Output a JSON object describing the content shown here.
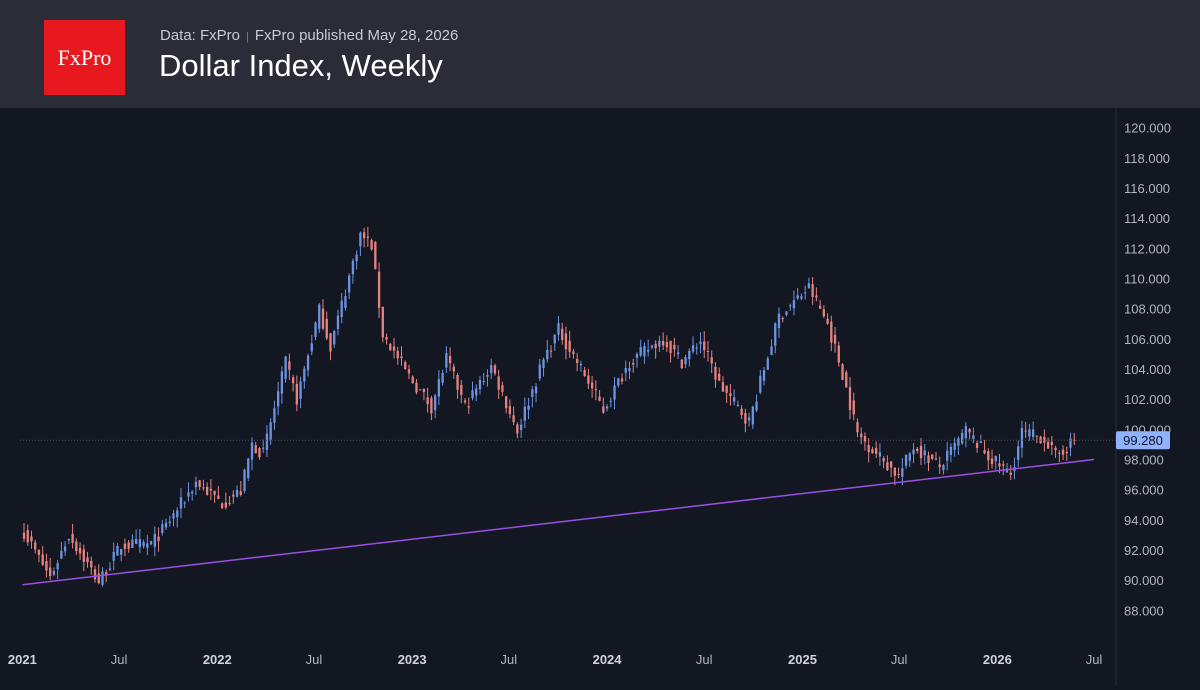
{
  "header": {
    "logo_text": "FxPro",
    "data_label": "Data: FxPro",
    "published_label": "FxPro published May 28, 2026",
    "title": "Dollar Index, Weekly"
  },
  "colors": {
    "up": "#6b93e0",
    "down": "#e8827e",
    "trendline": "#9c4fe3",
    "background": "#131722",
    "header": "#2a2d37",
    "price_badge": "#8fb3ff"
  },
  "chart_data": {
    "type": "candlestick",
    "title": "Dollar Index, Weekly",
    "frequency": "weekly",
    "x_range": [
      "2021-01-04",
      "2026-06-01"
    ],
    "ylim": [
      86.5,
      121.3
    ],
    "y_ticks": [
      88,
      90,
      92,
      94,
      96,
      98,
      100,
      102,
      104,
      106,
      108,
      110,
      112,
      114,
      116,
      118,
      120
    ],
    "y_tick_labels": [
      "88.000",
      "90.000",
      "92.000",
      "94.000",
      "96.000",
      "98.000",
      "100.000",
      "102.000",
      "104.000",
      "106.000",
      "108.000",
      "110.000",
      "112.000",
      "114.000",
      "116.000",
      "118.000",
      "120.000"
    ],
    "x_tick_labels": [
      {
        "date": "2021-01-01",
        "label": "2021",
        "bold": true
      },
      {
        "date": "2021-07-01",
        "label": "Jul",
        "bold": false
      },
      {
        "date": "2022-01-01",
        "label": "2022",
        "bold": true
      },
      {
        "date": "2022-07-01",
        "label": "Jul",
        "bold": false
      },
      {
        "date": "2023-01-01",
        "label": "2023",
        "bold": true
      },
      {
        "date": "2023-07-01",
        "label": "Jul",
        "bold": false
      },
      {
        "date": "2024-01-01",
        "label": "2024",
        "bold": true
      },
      {
        "date": "2024-07-01",
        "label": "Jul",
        "bold": false
      },
      {
        "date": "2025-01-01",
        "label": "2025",
        "bold": true
      },
      {
        "date": "2025-07-01",
        "label": "Jul",
        "bold": false
      },
      {
        "date": "2026-01-01",
        "label": "2026",
        "bold": true
      },
      {
        "date": "2026-07-01",
        "label": "Jul",
        "bold": false
      }
    ],
    "last_price": 99.28,
    "last_price_label": "99.280",
    "trendline": {
      "start": {
        "date": "2021-01-01",
        "value": 89.7
      },
      "end": {
        "date": "2026-07-01",
        "value": 98.0
      }
    },
    "close_anchors": [
      [
        "2021-01-04",
        93.2
      ],
      [
        "2021-02-22",
        90.2
      ],
      [
        "2021-03-29",
        93.0
      ],
      [
        "2021-05-24",
        89.9
      ],
      [
        "2021-07-05",
        92.3
      ],
      [
        "2021-08-30",
        92.4
      ],
      [
        "2021-09-27",
        93.6
      ],
      [
        "2021-11-22",
        96.5
      ],
      [
        "2022-01-10",
        95.1
      ],
      [
        "2022-02-14",
        95.9
      ],
      [
        "2022-03-07",
        99.0
      ],
      [
        "2022-03-28",
        98.4
      ],
      [
        "2022-05-09",
        104.4
      ],
      [
        "2022-05-30",
        102.0
      ],
      [
        "2022-07-11",
        107.9
      ],
      [
        "2022-08-01",
        105.5
      ],
      [
        "2022-09-26",
        112.9
      ],
      [
        "2022-10-17",
        112.2
      ],
      [
        "2022-11-07",
        106.3
      ],
      [
        "2022-12-26",
        103.5
      ],
      [
        "2023-02-06",
        101.5
      ],
      [
        "2023-03-06",
        104.7
      ],
      [
        "2023-04-10",
        101.5
      ],
      [
        "2023-05-29",
        104.2
      ],
      [
        "2023-07-17",
        99.9
      ],
      [
        "2023-09-04",
        104.6
      ],
      [
        "2023-10-02",
        106.6
      ],
      [
        "2023-11-20",
        103.6
      ],
      [
        "2023-12-25",
        101.3
      ],
      [
        "2024-02-12",
        104.5
      ],
      [
        "2024-04-15",
        106.0
      ],
      [
        "2024-05-20",
        104.5
      ],
      [
        "2024-06-24",
        105.9
      ],
      [
        "2024-07-29",
        103.0
      ],
      [
        "2024-09-23",
        100.5
      ],
      [
        "2024-11-18",
        107.5
      ],
      [
        "2025-01-13",
        109.4
      ],
      [
        "2025-02-17",
        107.0
      ],
      [
        "2025-03-17",
        103.7
      ],
      [
        "2025-04-14",
        99.7
      ],
      [
        "2025-06-30",
        96.9
      ],
      [
        "2025-07-28",
        98.9
      ],
      [
        "2025-09-15",
        97.5
      ],
      [
        "2025-11-03",
        99.9
      ],
      [
        "2025-12-15",
        98.2
      ],
      [
        "2026-01-26",
        97.0
      ],
      [
        "2026-02-16",
        99.8
      ],
      [
        "2026-03-30",
        99.4
      ],
      [
        "2026-04-20",
        98.2
      ],
      [
        "2026-05-25",
        99.28
      ]
    ]
  }
}
